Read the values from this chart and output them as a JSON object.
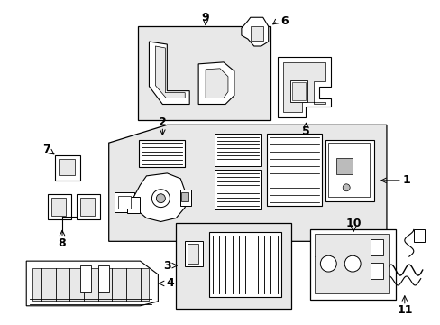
{
  "bg_color": "#ffffff",
  "lc": "#000000",
  "shade": "#e8e8e8",
  "fig_w": 4.89,
  "fig_h": 3.6,
  "dpi": 100,
  "parts": {
    "label_fontsize": 9,
    "arrow_lw": 0.7
  }
}
